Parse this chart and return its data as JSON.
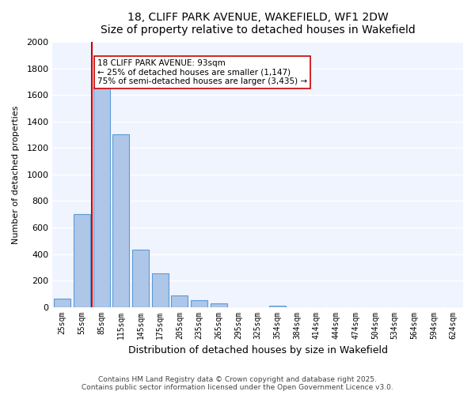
{
  "title": "18, CLIFF PARK AVENUE, WAKEFIELD, WF1 2DW",
  "subtitle": "Size of property relative to detached houses in Wakefield",
  "xlabel": "Distribution of detached houses by size in Wakefield",
  "ylabel": "Number of detached properties",
  "bar_labels": [
    "25sqm",
    "55sqm",
    "85sqm",
    "115sqm",
    "145sqm",
    "175sqm",
    "205sqm",
    "235sqm",
    "265sqm",
    "295sqm",
    "325sqm",
    "354sqm",
    "384sqm",
    "414sqm",
    "444sqm",
    "474sqm",
    "504sqm",
    "534sqm",
    "564sqm",
    "594sqm",
    "624sqm"
  ],
  "bar_values": [
    65,
    700,
    1660,
    1305,
    435,
    255,
    85,
    50,
    25,
    0,
    0,
    10,
    0,
    0,
    0,
    0,
    0,
    0,
    0,
    0,
    0
  ],
  "bar_color": "#aec6e8",
  "bar_edge_color": "#5b9bd5",
  "vline_x": 1,
  "vline_color": "#cc0000",
  "annotation_text": "18 CLIFF PARK AVENUE: 93sqm\n← 25% of detached houses are smaller (1,147)\n75% of semi-detached houses are larger (3,435) →",
  "annotation_box_color": "#ffffff",
  "annotation_box_edge": "#cc0000",
  "ylim": [
    0,
    2000
  ],
  "yticks": [
    0,
    200,
    400,
    600,
    800,
    1000,
    1200,
    1400,
    1600,
    1800,
    2000
  ],
  "bg_color": "#f0f4ff",
  "footer1": "Contains HM Land Registry data © Crown copyright and database right 2025.",
  "footer2": "Contains public sector information licensed under the Open Government Licence v3.0."
}
